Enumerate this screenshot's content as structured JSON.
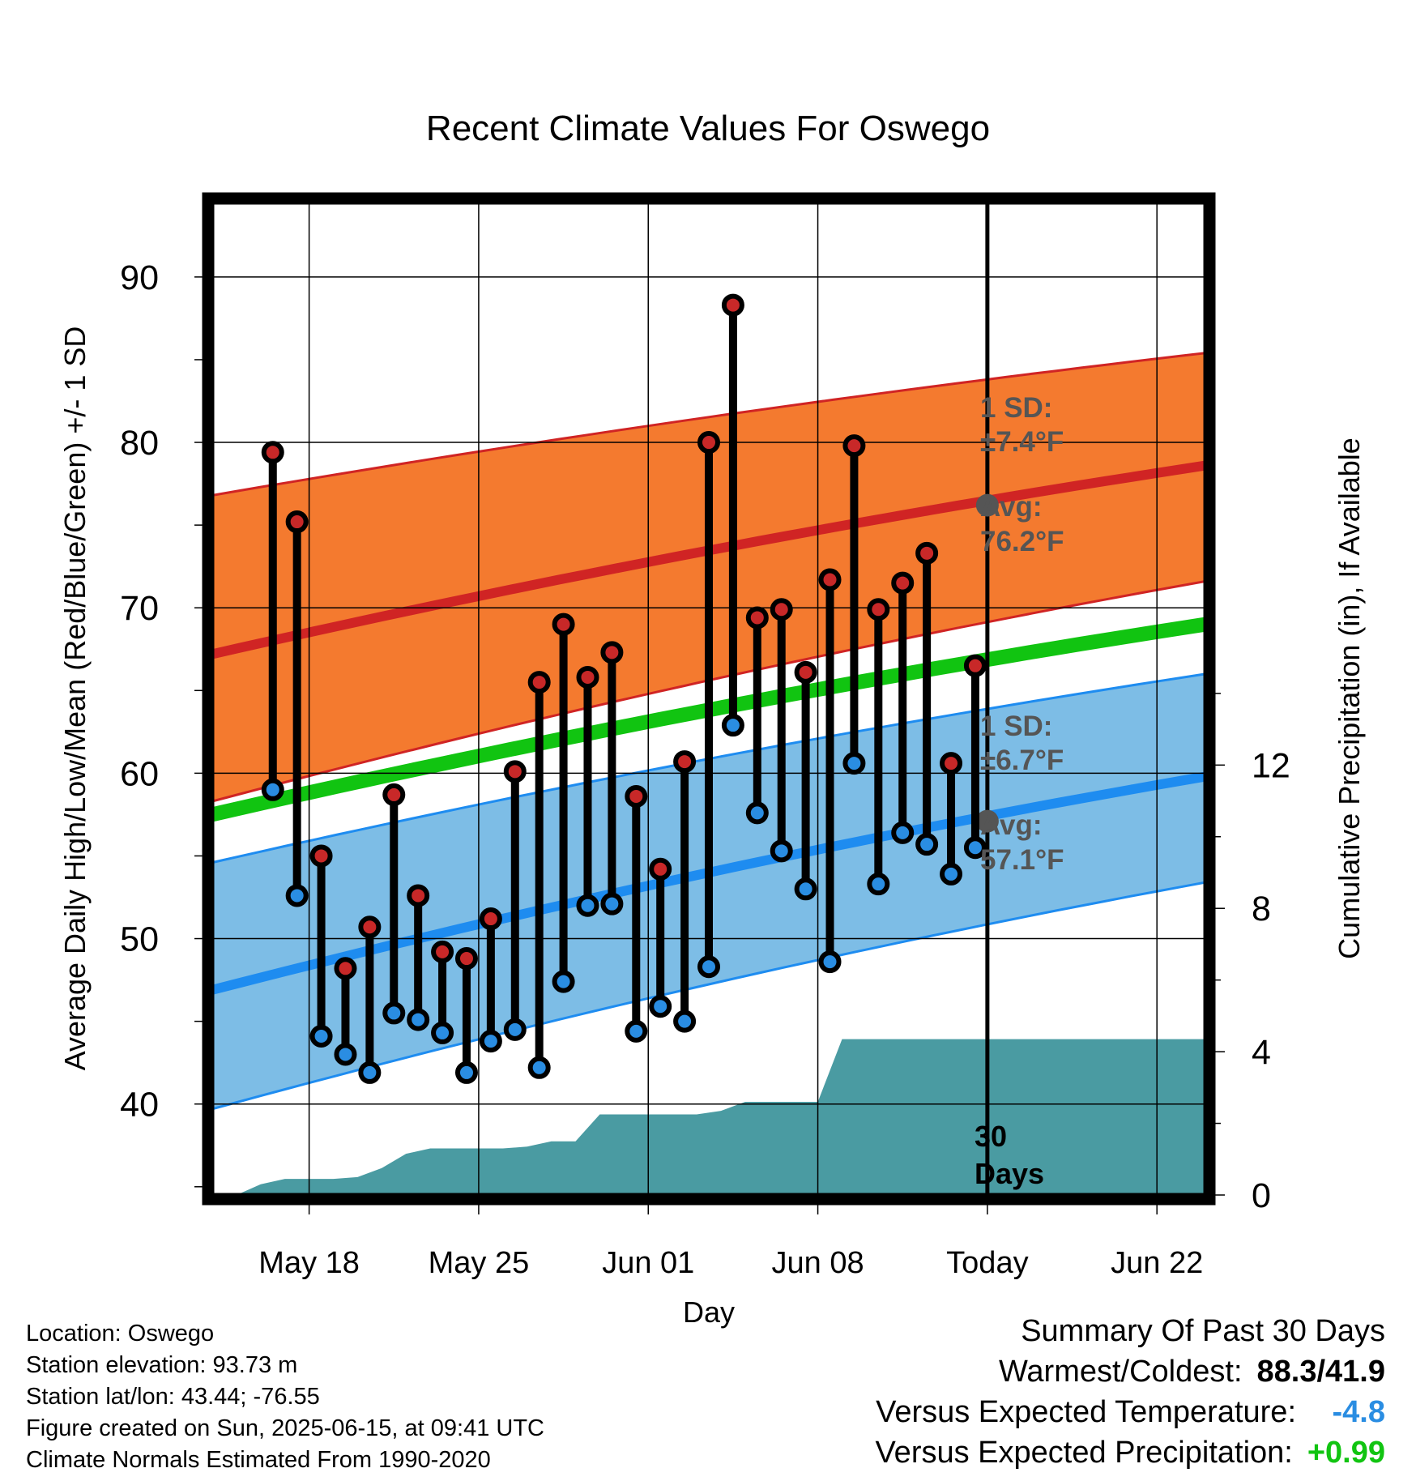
{
  "chart_data": {
    "type": "line",
    "title": "Recent Climate Values For Oswego",
    "xlabel": "Day",
    "ylabel": "Average Daily High/Low/Mean (Red/Blue/Green) +/- 1 SD",
    "y2label": "Cumulative Precipitation (in), If Available",
    "x_range": [
      "2025-05-14",
      "2025-06-24"
    ],
    "ylim": [
      34.5,
      94.5
    ],
    "y2lim": [
      0,
      27.7
    ],
    "y_ticks": [
      40,
      50,
      60,
      70,
      80,
      90
    ],
    "y2_ticks": [
      0,
      4,
      8,
      12
    ],
    "x_ticks": [
      {
        "date": "2025-05-18",
        "label": "May 18"
      },
      {
        "date": "2025-05-25",
        "label": "May 25"
      },
      {
        "date": "2025-06-01",
        "label": "Jun 01"
      },
      {
        "date": "2025-06-08",
        "label": "Jun 08"
      },
      {
        "date": "2025-06-15",
        "label": "Today"
      },
      {
        "date": "2025-06-22",
        "label": "Jun 22"
      }
    ],
    "grid": true,
    "today": "2025-06-15",
    "period_label": "30 Days",
    "colors": {
      "high_band": "#f47a2f",
      "high_avg": "#d02424",
      "low_band": "#7dbde6",
      "low_avg": "#1e8cf0",
      "mean": "#11c411",
      "precip": "#4a9ba2",
      "dot_high": "#c82828",
      "dot_low": "#2a8de2",
      "marker": "#555555"
    },
    "normals": {
      "dates": [
        "2025-05-14",
        "2025-06-24"
      ],
      "high_avg": [
        67.2,
        78.6
      ],
      "high_upper": [
        76.8,
        85.4
      ],
      "high_lower": [
        58.3,
        71.6
      ],
      "mean": [
        57.5,
        69.0
      ],
      "low_avg": [
        46.9,
        59.8
      ],
      "low_upper": [
        54.6,
        66.0
      ],
      "low_lower": [
        39.7,
        53.4
      ]
    },
    "annotations": {
      "high_sd_label": "1 SD:",
      "high_sd_value": "±7.4°F",
      "high_avg_label": "Avg:",
      "high_avg_value": "76.2°F",
      "low_sd_label": "1 SD:",
      "low_sd_value": "±6.7°F",
      "low_avg_label": "Avg:",
      "low_avg_value": "57.1°F",
      "today_high_avg": 76.2,
      "today_low_avg": 57.1
    },
    "series": [
      {
        "name": "High",
        "values": [
          79.4,
          75.2,
          55.0,
          48.2,
          50.7,
          58.7,
          52.6,
          49.2,
          48.8,
          51.2,
          60.1,
          65.5,
          69.0,
          65.8,
          67.3,
          58.6,
          54.2,
          60.7,
          80.0,
          88.3,
          69.4,
          69.9,
          66.1,
          71.7,
          79.8,
          69.9,
          71.5,
          73.3,
          60.6,
          66.5
        ]
      },
      {
        "name": "Low",
        "values": [
          59.0,
          52.6,
          44.1,
          43.0,
          41.9,
          45.5,
          45.1,
          44.3,
          41.9,
          43.8,
          44.5,
          42.2,
          47.4,
          52.0,
          52.1,
          44.4,
          45.9,
          45.0,
          48.3,
          62.9,
          57.6,
          55.3,
          53.0,
          48.6,
          60.6,
          53.3,
          56.4,
          55.7,
          53.9,
          55.5
        ]
      }
    ],
    "days": [
      "2025-05-16",
      "2025-05-17",
      "2025-05-18",
      "2025-05-19",
      "2025-05-20",
      "2025-05-21",
      "2025-05-22",
      "2025-05-23",
      "2025-05-24",
      "2025-05-25",
      "2025-05-26",
      "2025-05-27",
      "2025-05-28",
      "2025-05-29",
      "2025-05-30",
      "2025-05-31",
      "2025-06-01",
      "2025-06-02",
      "2025-06-03",
      "2025-06-04",
      "2025-06-05",
      "2025-06-06",
      "2025-06-07",
      "2025-06-08",
      "2025-06-09",
      "2025-06-10",
      "2025-06-11",
      "2025-06-12",
      "2025-06-13",
      "2025-06-14"
    ],
    "precip_cumulative": {
      "dates": [
        "2025-05-15",
        "2025-05-16",
        "2025-05-17",
        "2025-05-18",
        "2025-05-19",
        "2025-05-20",
        "2025-05-21",
        "2025-05-22",
        "2025-05-23",
        "2025-05-24",
        "2025-05-25",
        "2025-05-26",
        "2025-05-27",
        "2025-05-28",
        "2025-05-29",
        "2025-05-30",
        "2025-05-31",
        "2025-06-01",
        "2025-06-02",
        "2025-06-03",
        "2025-06-04",
        "2025-06-05",
        "2025-06-06",
        "2025-06-07",
        "2025-06-08",
        "2025-06-09",
        "2025-06-10",
        "2025-06-24"
      ],
      "values": [
        0,
        0.3,
        0.45,
        0.45,
        0.45,
        0.5,
        0.75,
        1.15,
        1.3,
        1.3,
        1.3,
        1.3,
        1.35,
        1.5,
        1.5,
        2.25,
        2.25,
        2.25,
        2.25,
        2.25,
        2.35,
        2.6,
        2.6,
        2.6,
        2.6,
        4.35,
        4.35,
        4.35
      ]
    }
  },
  "info": {
    "location": "Location: Oswego",
    "elevation": "Station elevation: 93.73 m",
    "latlon": "Station lat/lon: 43.44; -76.55",
    "created": "Figure created on Sun, 2025-06-15, at 09:41 UTC",
    "normals_note": "Climate Normals Estimated From 1990-2020"
  },
  "summary": {
    "heading": "Summary Of Past 30 Days",
    "warmest_label": "Warmest/Coldest:",
    "warmest_value": "88.3/41.9",
    "temp_label": "Versus Expected Temperature:",
    "temp_value": "-4.8",
    "temp_color": "#2a8de2",
    "precip_label": "Versus Expected Precipitation:",
    "precip_value": "+0.99",
    "precip_color": "#11c411"
  }
}
